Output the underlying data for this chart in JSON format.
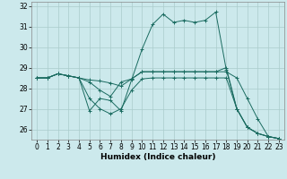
{
  "xlabel": "Humidex (Indice chaleur)",
  "background_color": "#cce9ec",
  "grid_color": "#aacccc",
  "line_color": "#1a6b60",
  "x_values": [
    0,
    1,
    2,
    3,
    4,
    5,
    6,
    7,
    8,
    9,
    10,
    11,
    12,
    13,
    14,
    15,
    16,
    17,
    18,
    19,
    20,
    21,
    22,
    23
  ],
  "lines": [
    [
      28.5,
      28.5,
      28.7,
      28.6,
      28.5,
      26.9,
      27.5,
      27.4,
      26.9,
      28.4,
      29.9,
      31.1,
      31.6,
      31.2,
      31.3,
      31.2,
      31.3,
      31.7,
      28.9,
      27.0,
      26.1,
      25.8,
      25.65,
      25.55
    ],
    [
      28.5,
      28.5,
      28.7,
      28.6,
      28.5,
      28.4,
      28.35,
      28.25,
      28.1,
      28.45,
      28.8,
      28.8,
      28.8,
      28.8,
      28.8,
      28.8,
      28.8,
      28.8,
      28.8,
      28.5,
      27.5,
      26.5,
      25.65,
      25.55
    ],
    [
      28.5,
      28.5,
      28.7,
      28.6,
      28.5,
      28.3,
      27.9,
      27.6,
      28.3,
      28.45,
      28.8,
      28.8,
      28.8,
      28.8,
      28.8,
      28.8,
      28.8,
      28.8,
      29.0,
      27.0,
      26.1,
      25.8,
      25.65,
      25.55
    ],
    [
      28.5,
      28.5,
      28.7,
      28.6,
      28.5,
      27.5,
      27.0,
      26.75,
      27.0,
      27.9,
      28.45,
      28.5,
      28.5,
      28.5,
      28.5,
      28.5,
      28.5,
      28.5,
      28.5,
      27.0,
      26.1,
      25.8,
      25.65,
      25.55
    ]
  ],
  "ylim": [
    25.5,
    32.2
  ],
  "yticks": [
    26,
    27,
    28,
    29,
    30,
    31,
    32
  ],
  "xticks": [
    0,
    1,
    2,
    3,
    4,
    5,
    6,
    7,
    8,
    9,
    10,
    11,
    12,
    13,
    14,
    15,
    16,
    17,
    18,
    19,
    20,
    21,
    22,
    23
  ],
  "tick_fontsize": 5.5,
  "label_fontsize": 6.5
}
